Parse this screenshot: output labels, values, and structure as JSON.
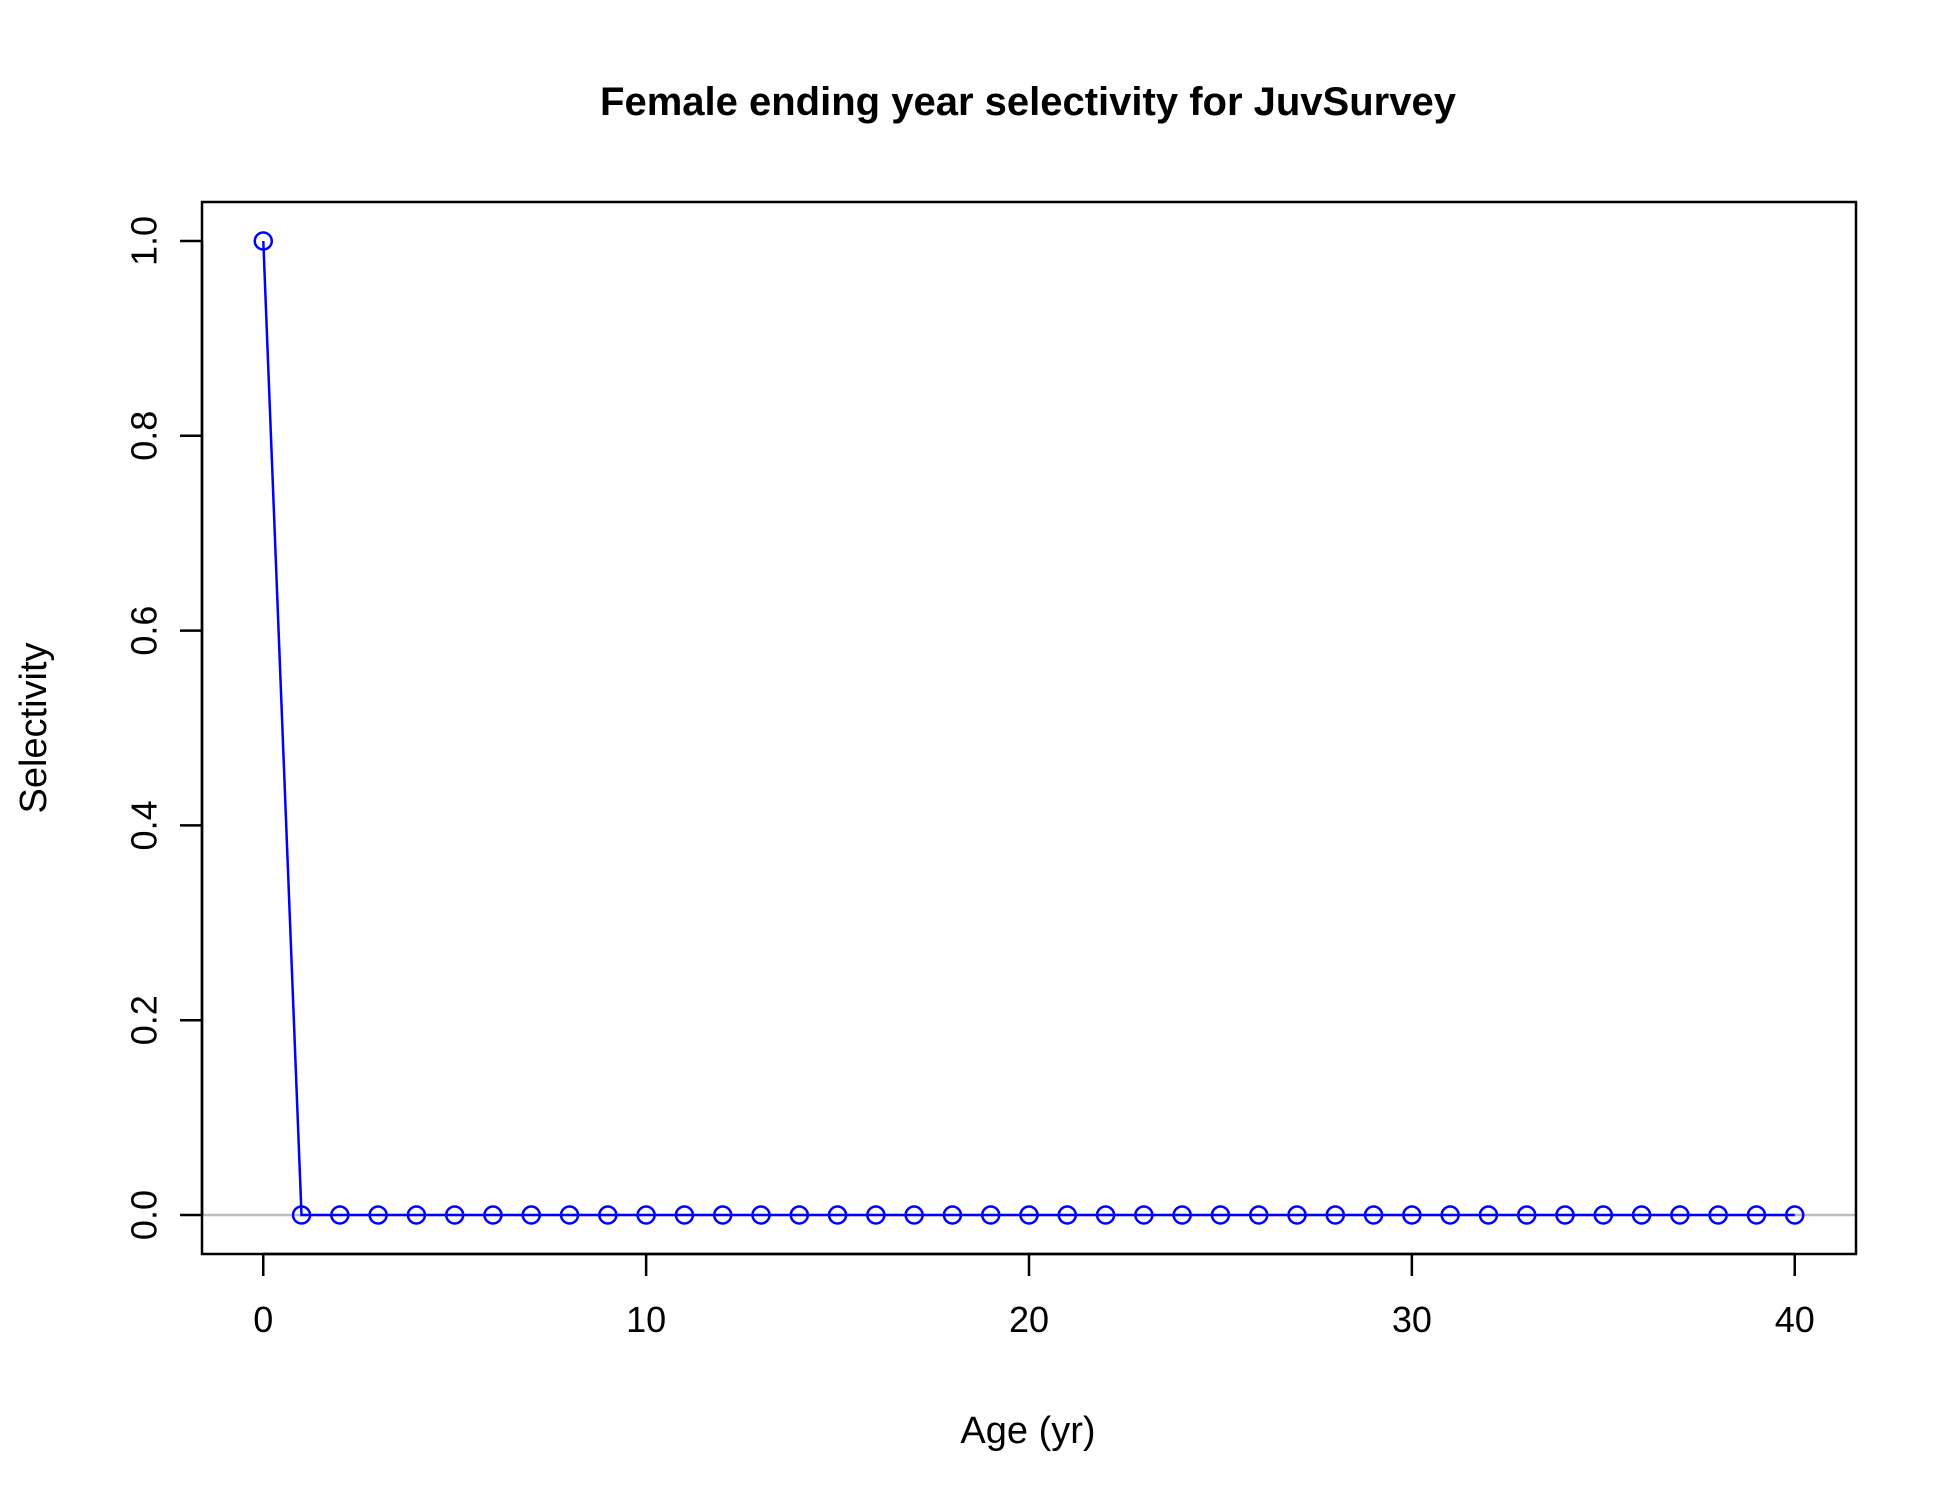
{
  "chart_data": {
    "type": "line",
    "title": "Female ending year selectivity for JuvSurvey",
    "xlabel": "Age (yr)",
    "ylabel": "Selectivity",
    "xlim": [
      -1.6,
      41.6
    ],
    "ylim": [
      -0.04,
      1.04
    ],
    "xticks": [
      "0",
      "10",
      "20",
      "30",
      "40"
    ],
    "yticks": [
      "0.0",
      "0.2",
      "0.4",
      "0.6",
      "0.8",
      "1.0"
    ],
    "x": [
      0,
      1,
      2,
      3,
      4,
      5,
      6,
      7,
      8,
      9,
      10,
      11,
      12,
      13,
      14,
      15,
      16,
      17,
      18,
      19,
      20,
      21,
      22,
      23,
      24,
      25,
      26,
      27,
      28,
      29,
      30,
      31,
      32,
      33,
      34,
      35,
      36,
      37,
      38,
      39,
      40
    ],
    "series": [
      {
        "color": "#0000ff",
        "values": [
          1,
          0,
          0,
          0,
          0,
          0,
          0,
          0,
          0,
          0,
          0,
          0,
          0,
          0,
          0,
          0,
          0,
          0,
          0,
          0,
          0,
          0,
          0,
          0,
          0,
          0,
          0,
          0,
          0,
          0,
          0,
          0,
          0,
          0,
          0,
          0,
          0,
          0,
          0,
          0,
          0
        ]
      }
    ],
    "reference_line": {
      "y": 0,
      "color": "#bebebe"
    },
    "grid": false,
    "legend": "none"
  }
}
